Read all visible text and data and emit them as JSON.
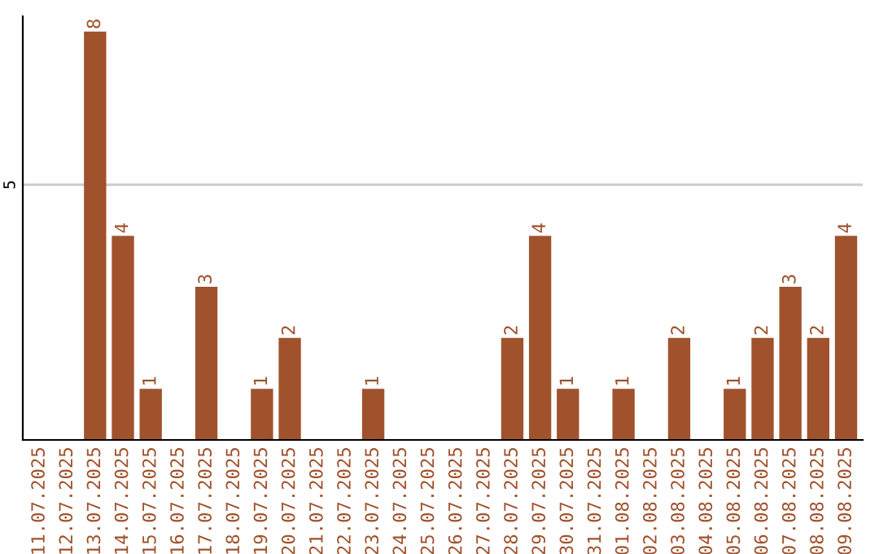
{
  "chart_data": {
    "type": "bar",
    "categories": [
      "11.07.2025",
      "12.07.2025",
      "13.07.2025",
      "14.07.2025",
      "15.07.2025",
      "16.07.2025",
      "17.07.2025",
      "18.07.2025",
      "19.07.2025",
      "20.07.2025",
      "21.07.2025",
      "22.07.2025",
      "23.07.2025",
      "24.07.2025",
      "25.07.2025",
      "26.07.2025",
      "27.07.2025",
      "28.07.2025",
      "29.07.2025",
      "30.07.2025",
      "31.07.2025",
      "01.08.2025",
      "02.08.2025",
      "03.08.2025",
      "04.08.2025",
      "05.08.2025",
      "06.08.2025",
      "07.08.2025",
      "08.08.2025",
      "09.08.2025"
    ],
    "values": [
      0,
      0,
      8,
      4,
      1,
      0,
      3,
      0,
      1,
      2,
      0,
      0,
      1,
      0,
      0,
      0,
      0,
      2,
      4,
      1,
      0,
      1,
      0,
      2,
      0,
      1,
      2,
      3,
      2,
      4
    ],
    "value_labels": [
      null,
      null,
      "8",
      "4",
      "1",
      null,
      "3",
      null,
      "1",
      "2",
      null,
      null,
      "1",
      null,
      null,
      null,
      null,
      "2",
      "4",
      "1",
      null,
      "1",
      null,
      "2",
      null,
      "1",
      "2",
      "3",
      "2",
      "4"
    ],
    "color": "#a0522d",
    "ylim": [
      0,
      8.3
    ],
    "yticks": [
      5
    ],
    "grid": "y",
    "legend": false
  }
}
